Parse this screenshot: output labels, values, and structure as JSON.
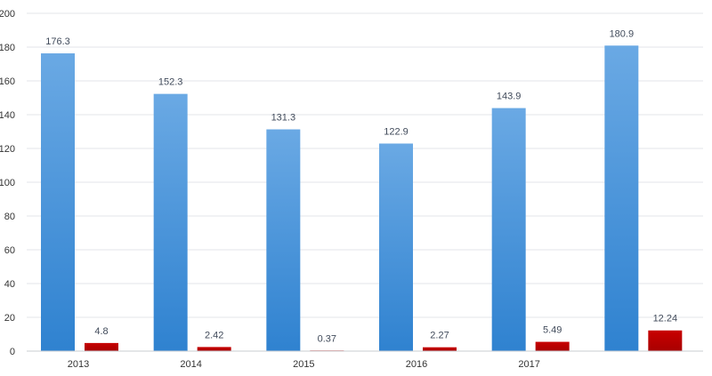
{
  "chart_data": {
    "type": "bar",
    "categories": [
      "2013",
      "2014",
      "2015",
      "2016",
      "2017",
      ""
    ],
    "series": [
      {
        "values": [
          176.3,
          152.3,
          131.3,
          122.9,
          143.9,
          180.9
        ],
        "color": "#3d8ed6",
        "labels": [
          "176.3",
          "152.3",
          "131.3",
          "122.9",
          "143.9",
          "180.9"
        ]
      },
      {
        "values": [
          4.8,
          2.42,
          0.37,
          2.27,
          5.49,
          12.24
        ],
        "color": "#c00000",
        "labels": [
          "4.8",
          "2.42",
          "0.37",
          "2.27",
          "5.49",
          "12.24"
        ]
      }
    ],
    "yticks": [
      "0",
      "20",
      "40",
      "60",
      "80",
      "100",
      "120",
      "140",
      "160",
      "180",
      "200"
    ],
    "ylim": [
      0,
      200
    ],
    "grid": true,
    "legend": "none",
    "title": "",
    "xlabel": "",
    "ylabel": ""
  }
}
